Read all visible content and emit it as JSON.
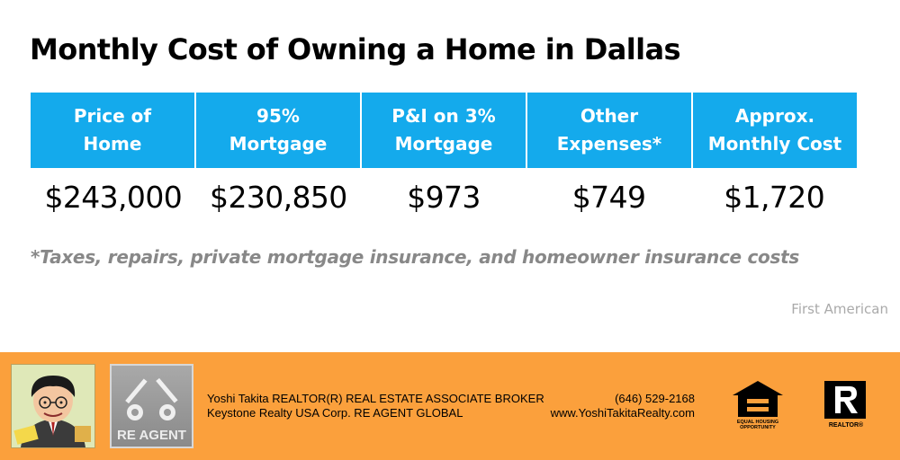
{
  "title": "Monthly Cost of Owning a Home in Dallas",
  "table": {
    "headers": [
      {
        "line1": "Price of",
        "line2": "Home"
      },
      {
        "line1": "95%",
        "line2": "Mortgage"
      },
      {
        "line1": "P&I on 3%",
        "line2": "Mortgage"
      },
      {
        "line1": "Other",
        "line2": "Expenses*"
      },
      {
        "line1": "Approx.",
        "line2": "Monthly Cost"
      }
    ],
    "values": [
      "$243,000",
      "$230,850",
      "$973",
      "$749",
      "$1,720"
    ]
  },
  "footnote": "*Taxes, repairs, private mortgage insurance, and homeowner insurance costs",
  "source": "First American",
  "footer": {
    "agent_line1": "Yoshi Takita REALTOR(R) REAL ESTATE ASSOCIATE BROKER",
    "agent_line2": "Keystone Realty USA Corp.  RE AGENT GLOBAL",
    "phone": "(646) 529-2168",
    "website": "www.YoshiTakitaRealty.com",
    "logo_text": "RE AGENT",
    "eho_line1": "EQUAL HOUSING",
    "eho_line2": "OPPORTUNITY",
    "realtor_label": "REALTOR®",
    "colors": {
      "band": "#fba03c",
      "table_header": "#14aaec"
    }
  }
}
